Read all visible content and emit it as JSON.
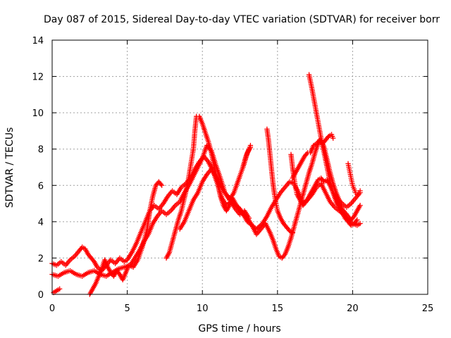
{
  "chart_data": {
    "type": "scatter",
    "title": "Day 087 of 2015, Sidereal Day-to-day VTEC variation (SDTVAR) for receiver borr",
    "xlabel": "GPS time / hours",
    "ylabel": "SDTVAR / TECUs",
    "xlim": [
      0,
      25
    ],
    "ylim": [
      0,
      14
    ],
    "xticks": [
      "0",
      "5",
      "10",
      "15",
      "20",
      "25"
    ],
    "yticks": [
      "0",
      "2",
      "4",
      "6",
      "8",
      "10",
      "12",
      "14"
    ],
    "grid": true,
    "marker": "plus",
    "color": "#ff0000",
    "series": [
      {
        "points": [
          [
            0.0,
            1.7
          ],
          [
            0.3,
            1.6
          ],
          [
            0.6,
            1.8
          ],
          [
            0.9,
            1.6
          ],
          [
            1.2,
            1.9
          ],
          [
            1.5,
            2.1
          ],
          [
            1.8,
            2.4
          ],
          [
            2.0,
            2.6
          ],
          [
            2.2,
            2.5
          ],
          [
            2.4,
            2.2
          ],
          [
            2.6,
            2.0
          ],
          [
            2.8,
            1.8
          ],
          [
            3.0,
            1.5
          ],
          [
            3.3,
            1.3
          ],
          [
            3.6,
            1.6
          ],
          [
            3.9,
            1.9
          ],
          [
            4.2,
            1.7
          ],
          [
            4.5,
            2.0
          ],
          [
            4.8,
            1.8
          ],
          [
            5.0,
            1.9
          ],
          [
            5.3,
            2.3
          ],
          [
            5.6,
            2.8
          ],
          [
            5.9,
            3.4
          ],
          [
            6.2,
            4.0
          ],
          [
            6.5,
            4.6
          ],
          [
            6.8,
            4.9
          ],
          [
            7.1,
            4.7
          ],
          [
            7.4,
            5.0
          ],
          [
            7.7,
            5.4
          ],
          [
            8.0,
            5.7
          ],
          [
            8.3,
            5.5
          ],
          [
            8.6,
            5.9
          ],
          [
            8.9,
            6.1
          ],
          [
            9.2,
            6.4
          ],
          [
            9.5,
            6.9
          ],
          [
            9.8,
            7.3
          ],
          [
            10.1,
            7.6
          ],
          [
            10.4,
            7.3
          ],
          [
            10.7,
            6.8
          ],
          [
            11.0,
            6.1
          ],
          [
            11.3,
            5.3
          ],
          [
            11.6,
            4.9
          ],
          [
            11.9,
            5.1
          ],
          [
            12.2,
            4.7
          ],
          [
            12.5,
            4.4
          ],
          [
            12.8,
            4.6
          ],
          [
            13.1,
            4.2
          ]
        ]
      },
      {
        "points": [
          [
            0.0,
            1.1
          ],
          [
            0.4,
            1.0
          ],
          [
            0.8,
            1.2
          ],
          [
            1.2,
            1.3
          ],
          [
            1.6,
            1.1
          ],
          [
            2.0,
            1.0
          ],
          [
            2.4,
            1.2
          ],
          [
            2.8,
            1.3
          ],
          [
            3.2,
            1.1
          ],
          [
            3.6,
            1.0
          ],
          [
            4.0,
            1.2
          ],
          [
            4.4,
            1.4
          ],
          [
            4.8,
            1.5
          ],
          [
            5.2,
            1.6
          ],
          [
            5.5,
            2.0
          ],
          [
            5.8,
            2.4
          ],
          [
            6.1,
            2.9
          ],
          [
            6.4,
            3.3
          ],
          [
            6.7,
            3.9
          ],
          [
            7.0,
            4.3
          ],
          [
            7.3,
            4.6
          ],
          [
            7.6,
            4.4
          ],
          [
            7.9,
            4.6
          ],
          [
            8.2,
            4.9
          ],
          [
            8.5,
            5.1
          ],
          [
            8.8,
            5.6
          ],
          [
            9.1,
            6.0
          ],
          [
            9.4,
            6.5
          ],
          [
            9.7,
            7.0
          ],
          [
            10.0,
            7.5
          ],
          [
            10.3,
            8.2
          ],
          [
            10.6,
            7.9
          ],
          [
            10.9,
            7.1
          ],
          [
            11.2,
            6.4
          ],
          [
            11.5,
            5.6
          ],
          [
            11.8,
            5.2
          ],
          [
            12.1,
            5.6
          ],
          [
            12.4,
            6.3
          ],
          [
            12.7,
            7.0
          ],
          [
            13.0,
            7.8
          ],
          [
            13.2,
            8.1
          ]
        ]
      },
      {
        "points": [
          [
            2.5,
            0.0
          ],
          [
            2.7,
            0.3
          ],
          [
            2.9,
            0.6
          ],
          [
            3.1,
            1.0
          ],
          [
            3.3,
            1.4
          ],
          [
            3.5,
            1.9
          ],
          [
            3.7,
            1.5
          ],
          [
            3.9,
            1.2
          ],
          [
            4.1,
            1.0
          ],
          [
            4.3,
            1.3
          ],
          [
            4.5,
            1.1
          ],
          [
            4.7,
            0.8
          ],
          [
            4.9,
            1.2
          ],
          [
            5.1,
            1.6
          ],
          [
            5.4,
            1.5
          ],
          [
            5.7,
            1.9
          ],
          [
            6.0,
            2.6
          ],
          [
            6.3,
            3.5
          ],
          [
            6.5,
            4.6
          ],
          [
            6.7,
            5.4
          ],
          [
            6.9,
            6.0
          ],
          [
            7.1,
            6.2
          ],
          [
            7.3,
            6.0
          ]
        ]
      },
      {
        "points": [
          [
            0.1,
            0.1
          ],
          [
            0.3,
            0.2
          ],
          [
            0.5,
            0.3
          ]
        ]
      },
      {
        "points": [
          [
            7.6,
            2.0
          ],
          [
            7.8,
            2.3
          ],
          [
            8.0,
            2.9
          ],
          [
            8.2,
            3.5
          ],
          [
            8.4,
            4.1
          ],
          [
            8.6,
            4.6
          ],
          [
            8.8,
            5.3
          ],
          [
            9.0,
            6.0
          ],
          [
            9.2,
            7.0
          ],
          [
            9.4,
            8.0
          ],
          [
            9.5,
            9.0
          ],
          [
            9.6,
            9.8
          ],
          [
            9.8,
            9.8
          ],
          [
            10.0,
            9.4
          ],
          [
            10.2,
            8.9
          ],
          [
            10.4,
            8.4
          ],
          [
            10.6,
            7.8
          ],
          [
            10.8,
            7.0
          ],
          [
            11.0,
            6.2
          ],
          [
            11.2,
            5.4
          ],
          [
            11.4,
            4.9
          ],
          [
            11.6,
            4.6
          ],
          [
            11.8,
            4.9
          ],
          [
            12.0,
            5.3
          ],
          [
            12.2,
            5.0
          ],
          [
            12.4,
            4.7
          ],
          [
            12.6,
            4.5
          ],
          [
            12.8,
            4.3
          ],
          [
            13.0,
            4.0
          ],
          [
            13.3,
            3.8
          ],
          [
            13.6,
            3.6
          ],
          [
            14.0,
            3.9
          ],
          [
            14.3,
            4.3
          ],
          [
            14.6,
            4.8
          ],
          [
            14.9,
            5.2
          ],
          [
            15.2,
            5.6
          ],
          [
            15.5,
            5.9
          ],
          [
            15.8,
            6.2
          ],
          [
            16.1,
            6.1
          ],
          [
            16.4,
            5.6
          ],
          [
            16.7,
            5.0
          ],
          [
            17.0,
            5.2
          ],
          [
            17.3,
            5.5
          ],
          [
            17.6,
            5.9
          ],
          [
            17.9,
            6.1
          ],
          [
            18.2,
            5.6
          ],
          [
            18.5,
            5.1
          ],
          [
            18.8,
            4.8
          ],
          [
            19.1,
            4.6
          ],
          [
            19.4,
            4.4
          ],
          [
            19.7,
            4.1
          ],
          [
            20.0,
            3.9
          ],
          [
            20.3,
            3.8
          ],
          [
            20.5,
            3.9
          ]
        ]
      },
      {
        "points": [
          [
            8.5,
            3.6
          ],
          [
            8.8,
            4.0
          ],
          [
            9.1,
            4.6
          ],
          [
            9.4,
            5.2
          ],
          [
            9.7,
            5.6
          ],
          [
            10.0,
            6.2
          ],
          [
            10.3,
            6.6
          ],
          [
            10.6,
            6.9
          ],
          [
            10.9,
            6.5
          ],
          [
            11.2,
            6.0
          ],
          [
            11.5,
            5.6
          ],
          [
            11.8,
            5.3
          ],
          [
            12.1,
            5.0
          ],
          [
            12.4,
            4.8
          ],
          [
            12.7,
            4.5
          ],
          [
            13.0,
            4.2
          ],
          [
            13.3,
            3.8
          ],
          [
            13.6,
            3.3
          ],
          [
            13.9,
            3.6
          ],
          [
            14.2,
            3.9
          ],
          [
            14.5,
            3.4
          ],
          [
            14.7,
            3.0
          ],
          [
            14.9,
            2.5
          ],
          [
            15.1,
            2.1
          ],
          [
            15.3,
            2.0
          ],
          [
            15.5,
            2.2
          ],
          [
            15.7,
            2.6
          ],
          [
            15.9,
            3.1
          ],
          [
            16.1,
            3.7
          ],
          [
            16.3,
            4.3
          ],
          [
            16.5,
            4.9
          ],
          [
            16.7,
            5.5
          ],
          [
            16.9,
            6.1
          ],
          [
            17.1,
            6.7
          ],
          [
            17.3,
            7.2
          ],
          [
            17.5,
            7.8
          ],
          [
            17.7,
            8.3
          ],
          [
            17.9,
            8.5
          ],
          [
            18.1,
            8.1
          ],
          [
            18.3,
            7.4
          ],
          [
            18.5,
            6.7
          ],
          [
            18.7,
            6.1
          ],
          [
            18.9,
            5.6
          ],
          [
            19.1,
            5.2
          ],
          [
            19.3,
            5.0
          ],
          [
            19.6,
            4.8
          ],
          [
            19.9,
            5.0
          ],
          [
            20.2,
            5.3
          ],
          [
            20.5,
            5.6
          ]
        ]
      },
      {
        "points": [
          [
            17.1,
            12.1
          ],
          [
            17.3,
            11.3
          ],
          [
            17.5,
            10.4
          ],
          [
            17.7,
            9.5
          ],
          [
            17.9,
            8.6
          ],
          [
            18.1,
            7.8
          ],
          [
            18.3,
            7.0
          ],
          [
            18.5,
            6.2
          ],
          [
            18.7,
            5.6
          ],
          [
            18.9,
            5.1
          ],
          [
            19.1,
            4.8
          ],
          [
            19.3,
            4.5
          ],
          [
            19.5,
            4.2
          ],
          [
            19.7,
            4.0
          ],
          [
            19.9,
            3.8
          ],
          [
            20.1,
            3.9
          ],
          [
            20.3,
            4.1
          ]
        ]
      },
      {
        "points": [
          [
            14.3,
            9.1
          ],
          [
            14.4,
            8.5
          ],
          [
            14.5,
            7.7
          ],
          [
            14.6,
            6.9
          ],
          [
            14.7,
            6.1
          ],
          [
            14.8,
            5.5
          ],
          [
            14.9,
            5.0
          ],
          [
            15.0,
            4.6
          ],
          [
            15.2,
            4.2
          ],
          [
            15.4,
            3.9
          ],
          [
            15.6,
            3.7
          ],
          [
            15.8,
            3.5
          ],
          [
            16.0,
            3.4
          ]
        ]
      },
      {
        "points": [
          [
            16.0,
            6.4
          ],
          [
            16.2,
            6.7
          ],
          [
            16.4,
            7.0
          ],
          [
            16.6,
            7.3
          ],
          [
            16.8,
            7.6
          ],
          [
            17.0,
            7.8
          ],
          [
            17.2,
            7.8
          ],
          [
            17.4,
            8.2
          ],
          [
            17.6,
            8.3
          ],
          [
            17.8,
            8.5
          ],
          [
            18.0,
            8.3
          ],
          [
            18.2,
            8.5
          ],
          [
            18.4,
            8.7
          ],
          [
            18.6,
            8.8
          ],
          [
            18.7,
            8.6
          ]
        ]
      },
      {
        "points": [
          [
            15.9,
            7.7
          ],
          [
            16.0,
            7.0
          ],
          [
            16.1,
            6.4
          ],
          [
            16.2,
            5.9
          ],
          [
            16.3,
            5.5
          ],
          [
            16.5,
            5.2
          ],
          [
            16.7,
            4.9
          ],
          [
            16.9,
            5.1
          ],
          [
            17.1,
            5.4
          ],
          [
            17.3,
            5.7
          ],
          [
            17.5,
            6.0
          ],
          [
            17.7,
            6.3
          ],
          [
            17.9,
            6.4
          ],
          [
            18.1,
            6.2
          ],
          [
            18.3,
            6.3
          ],
          [
            18.5,
            6.0
          ],
          [
            18.7,
            5.6
          ],
          [
            18.9,
            5.3
          ],
          [
            19.1,
            5.0
          ],
          [
            19.3,
            4.7
          ],
          [
            19.5,
            4.5
          ],
          [
            19.7,
            4.3
          ],
          [
            19.9,
            4.1
          ],
          [
            20.1,
            4.3
          ],
          [
            20.3,
            4.6
          ],
          [
            20.5,
            4.9
          ]
        ]
      },
      {
        "points": [
          [
            19.7,
            7.2
          ],
          [
            19.8,
            6.8
          ],
          [
            19.9,
            6.4
          ],
          [
            20.0,
            6.0
          ],
          [
            20.1,
            5.8
          ],
          [
            20.2,
            5.6
          ],
          [
            20.3,
            5.5
          ],
          [
            20.4,
            5.6
          ],
          [
            20.5,
            5.7
          ]
        ]
      },
      {
        "points": [
          [
            12.7,
            7.0
          ],
          [
            12.9,
            7.6
          ],
          [
            13.1,
            8.0
          ],
          [
            13.2,
            8.2
          ]
        ]
      }
    ]
  }
}
